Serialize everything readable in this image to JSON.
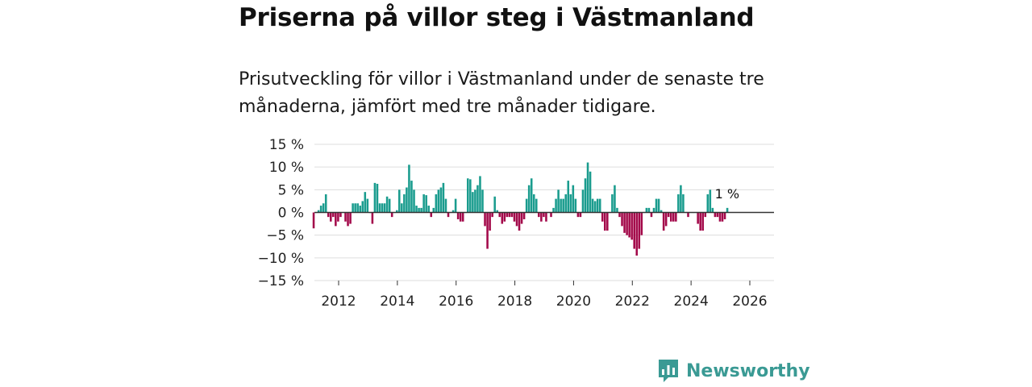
{
  "header": {
    "title": "Priserna på villor steg i Västmanland",
    "subtitle": "Prisutveckling för villor i Västmanland under de senaste tre månaderna, jämfört med tre månader tidigare."
  },
  "brand": {
    "name": "Newsworthy"
  },
  "colors": {
    "positive": "#1a9c8e",
    "negative": "#a3094a",
    "grid": "#dddddd",
    "zero": "#333333",
    "brand": "#3a9a94"
  },
  "chart_data": {
    "type": "bar",
    "title": "Priserna på villor steg i Västmanland",
    "xlabel": "",
    "ylabel": "",
    "ylim": [
      -15,
      15
    ],
    "yticks": [
      "15 %",
      "10 %",
      "5 %",
      "0 %",
      "−5 %",
      "−10 %",
      "−15 %"
    ],
    "xticks": [
      "2012",
      "2014",
      "2016",
      "2018",
      "2020",
      "2022",
      "2024",
      "2026"
    ],
    "start_year": 2011.15,
    "months_per_bar": 1,
    "values": [
      -3.5,
      0,
      0.5,
      1.5,
      2,
      4,
      -1,
      -2,
      -1,
      -3,
      -2,
      -1,
      0,
      -2,
      -3,
      -2.5,
      2,
      2,
      2,
      1.5,
      2.5,
      4.5,
      3,
      0,
      -2.5,
      6.5,
      6.3,
      2,
      2,
      2,
      3.5,
      3,
      -1,
      0,
      0.5,
      5,
      2,
      4,
      5.5,
      10.5,
      7,
      5,
      1.5,
      1,
      1,
      4,
      3.8,
      1.5,
      -1,
      1,
      4,
      5,
      5.5,
      6.5,
      3,
      -1,
      0,
      0.5,
      3,
      -1.5,
      -2,
      -2,
      0,
      7.5,
      7.3,
      4.5,
      5,
      6,
      8,
      5,
      -3,
      -8,
      -4,
      -1,
      3.5,
      0.5,
      -1,
      -2.5,
      -2,
      -1,
      -1,
      -1,
      -2,
      -3,
      -4,
      -2.5,
      -1.5,
      3,
      6,
      7.5,
      4,
      3,
      -1,
      -2,
      -1,
      -2,
      0,
      -1,
      1,
      3,
      5,
      3,
      3,
      4,
      7,
      4,
      6,
      3,
      -1,
      -1,
      5,
      7.5,
      11,
      9,
      3,
      2.5,
      3,
      3,
      -2,
      -4,
      -4,
      0,
      4,
      6,
      1,
      -1,
      -3,
      -4.5,
      -5,
      -5.5,
      -6,
      -8,
      -9.5,
      -8,
      -5,
      0,
      1,
      1,
      -1,
      1,
      3,
      3,
      0.5,
      -4,
      -3,
      -1,
      -2,
      -2,
      -2,
      4,
      6,
      4,
      0,
      -1,
      0,
      0,
      0,
      -2.5,
      -4,
      -4,
      -1,
      4,
      5,
      1,
      -1,
      -1,
      -2,
      -2,
      -1.5,
      1
    ],
    "last_label": "1 %"
  }
}
